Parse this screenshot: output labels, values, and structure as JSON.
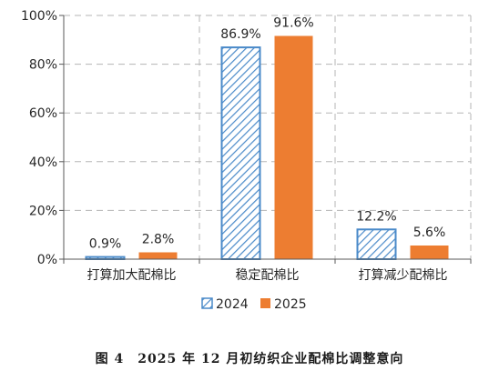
{
  "chart_data": {
    "type": "bar",
    "categories": [
      "打算加大配棉比",
      "稳定配棉比",
      "打算减少配棉比"
    ],
    "series": [
      {
        "name": "2024",
        "values": [
          0.9,
          86.9,
          12.2
        ],
        "color": "#4a8ac9",
        "pattern": "hatched"
      },
      {
        "name": "2025",
        "values": [
          2.8,
          91.6,
          5.6
        ],
        "color": "#ed7d31",
        "pattern": "solid"
      }
    ],
    "data_labels": [
      [
        "0.9%",
        "86.9%",
        "12.2%"
      ],
      [
        "2.8%",
        "91.6%",
        "5.6%"
      ]
    ],
    "y_ticks": [
      "0%",
      "20%",
      "40%",
      "60%",
      "80%",
      "100%"
    ],
    "ylim": [
      0,
      100
    ],
    "grid": "dashed horizontal",
    "legend_position": "bottom",
    "caption": "图 4　2025 年 12 月初纺织企业配棉比调整意向"
  }
}
